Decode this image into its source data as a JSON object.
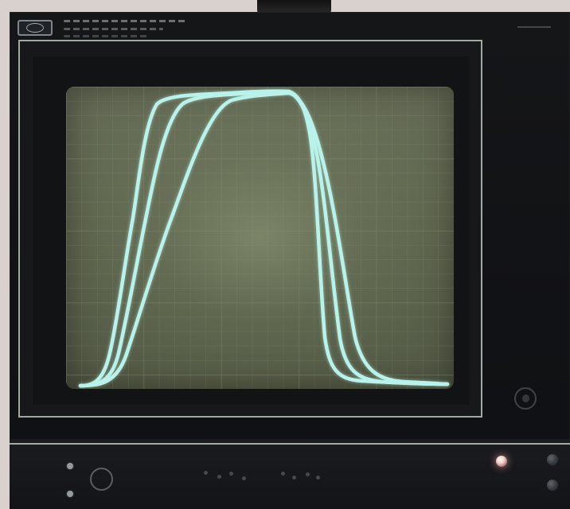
{
  "colors": {
    "background": "#d8d1cd",
    "instrument": "#131418",
    "bezel_line": "#a0aaa1",
    "screen": "#646b53",
    "grid": "#7a7f66",
    "trace": "#b8f2ea",
    "indicator": "#f7d7d1"
  },
  "icons": {
    "logo": "logo-icon",
    "power_light": "indicator-light-icon",
    "front_knob": "knob-icon"
  }
}
